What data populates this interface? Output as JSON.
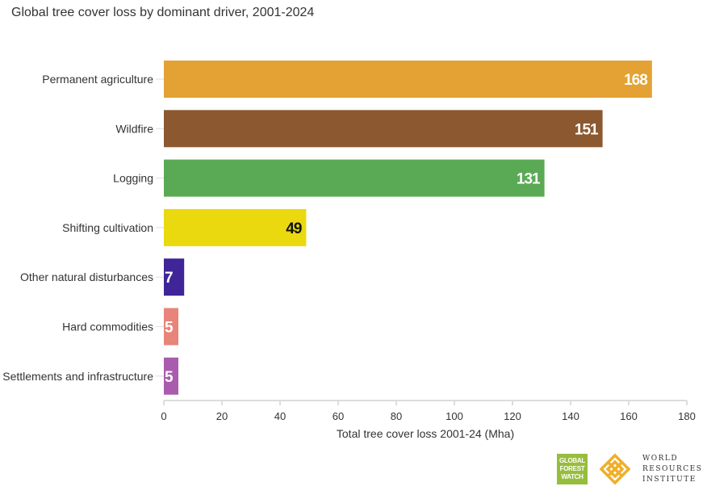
{
  "chart_data": {
    "type": "bar",
    "orientation": "horizontal",
    "title": "Global tree cover loss by dominant driver, 2001-2024",
    "xlabel": "Total tree cover loss 2001-24 (Mha)",
    "ylabel": "",
    "xlim": [
      0,
      180
    ],
    "xticks": [
      0,
      20,
      40,
      60,
      80,
      100,
      120,
      140,
      160,
      180
    ],
    "categories": [
      "Permanent agriculture",
      "Wildfire",
      "Logging",
      "Shifting cultivation",
      "Other natural disturbances",
      "Hard commodities",
      "Settlements and infrastructure"
    ],
    "values": [
      168,
      151,
      131,
      49,
      7,
      5,
      5
    ],
    "data_labels": [
      "168",
      "151",
      "131",
      "49",
      "7",
      "5",
      "5"
    ],
    "colors": [
      "#E3A233",
      "#8C5830",
      "#5AAA55",
      "#EAD90E",
      "#3F2598",
      "#E8847A",
      "#A95CAD"
    ],
    "label_colors": [
      "#ffffff",
      "#ffffff",
      "#ffffff",
      "#111111",
      "#ffffff",
      "#ffffff",
      "#ffffff"
    ],
    "grid": false,
    "legend": "none"
  },
  "logos": {
    "gfw": [
      "GLOBAL",
      "FOREST",
      "WATCH"
    ],
    "wri": [
      "WORLD",
      "RESOURCES",
      "INSTITUTE"
    ]
  }
}
